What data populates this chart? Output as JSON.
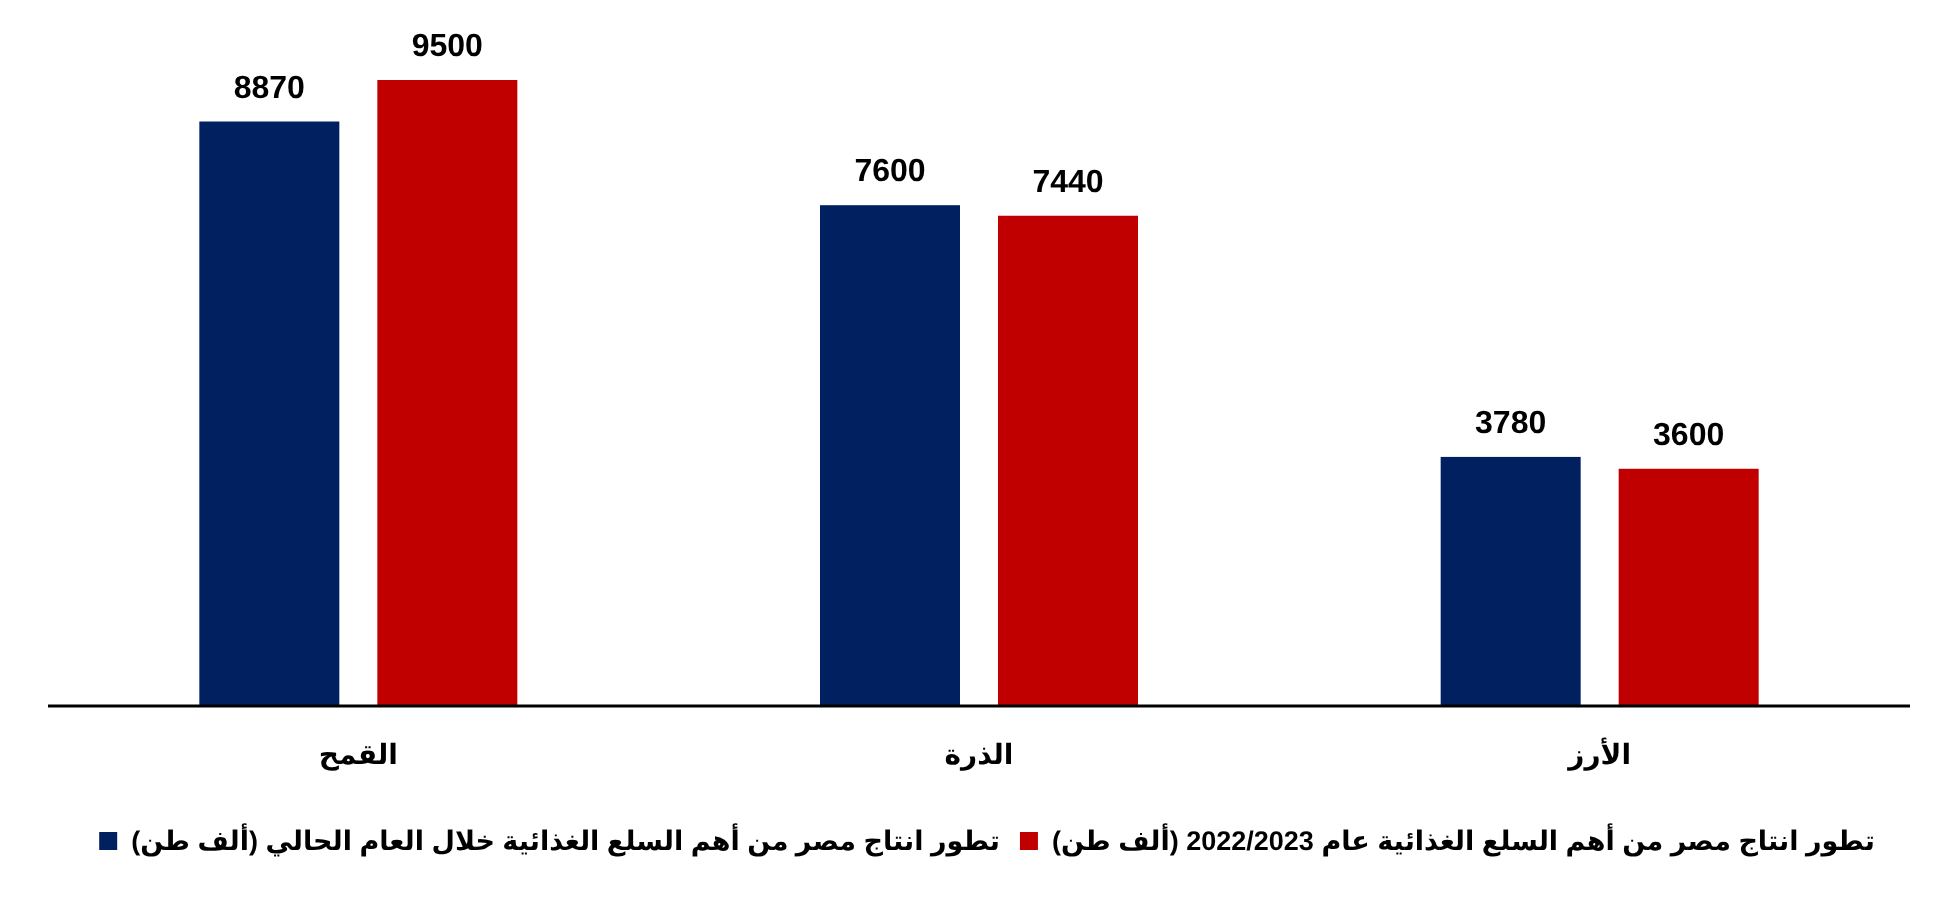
{
  "chart_data": {
    "type": "bar",
    "categories": [
      "القمح",
      "الذرة",
      "الأرز"
    ],
    "series": [
      {
        "name": "تطور انتاج مصر من أهم السلع الغذائية عام 2022/2023 (ألف طن)",
        "color": "#c00000",
        "values": [
          9500,
          7440,
          3600
        ]
      },
      {
        "name": "تطور انتاج مصر من أهم السلع الغذائية خلال العام الحالي (ألف طن)",
        "color": "#002060",
        "values": [
          8870,
          7600,
          3780
        ]
      }
    ],
    "tick_labels": "x",
    "data_labels": true,
    "legend": "bottom"
  }
}
